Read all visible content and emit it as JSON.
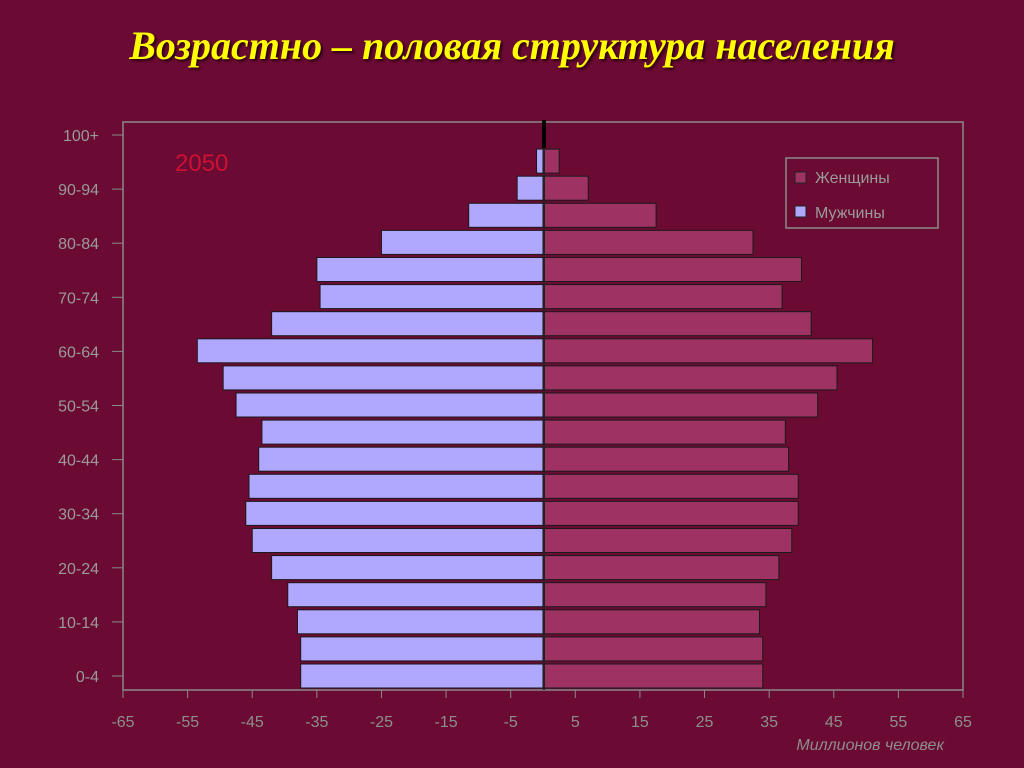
{
  "slide": {
    "title": "Возрастно – половая структура населения"
  },
  "colors": {
    "background": "#6b0a33",
    "title": "#ffff00",
    "men": "#b0a8ff",
    "women": "#9e3363",
    "frame": "#8a8a8a",
    "year": "#cc1133"
  },
  "chart_data": {
    "type": "bar",
    "orientation": "horizontal-pyramid",
    "year_label": "2050",
    "xlabel": "Миллионов человек",
    "ylabel": "",
    "x_ticks": [
      "-65",
      "-55",
      "-45",
      "-35",
      "-25",
      "-15",
      "-5",
      "5",
      "15",
      "25",
      "35",
      "45",
      "55",
      "65"
    ],
    "xlim": [
      -65,
      65
    ],
    "y_tick_labels": [
      "100+",
      "90-94",
      "80-84",
      "70-74",
      "60-64",
      "50-54",
      "40-44",
      "30-34",
      "20-24",
      "10-14",
      "0-4"
    ],
    "categories": [
      "0-4",
      "5-9",
      "10-14",
      "15-19",
      "20-24",
      "25-29",
      "30-34",
      "35-39",
      "40-44",
      "45-49",
      "50-54",
      "55-59",
      "60-64",
      "65-69",
      "70-74",
      "75-79",
      "80-84",
      "85-89",
      "90-94",
      "95-99",
      "100+"
    ],
    "series": [
      {
        "name": "Женщины",
        "color": "#9e3363",
        "values": [
          34,
          34,
          33.5,
          34.5,
          36.5,
          38.5,
          39.5,
          39.5,
          38,
          37.5,
          42.5,
          45.5,
          51,
          41.5,
          37,
          40,
          32.5,
          17.5,
          7,
          2.5,
          0
        ]
      },
      {
        "name": "Мужчины",
        "color": "#b0a8ff",
        "values": [
          -37.5,
          -37.5,
          -38,
          -39.5,
          -42,
          -45,
          -46,
          -45.5,
          -44,
          -43.5,
          -47.5,
          -49.5,
          -53.5,
          -42,
          -34.5,
          -35,
          -25,
          -11.5,
          -4,
          -1,
          0
        ]
      }
    ],
    "legend": {
      "placement": "top-right",
      "entries": [
        "Женщины",
        "Мужчины"
      ]
    },
    "grid": false
  }
}
